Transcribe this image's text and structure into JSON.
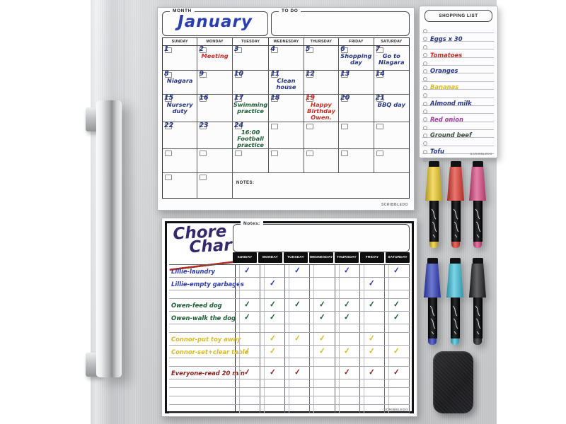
{
  "palette": {
    "navy": "#27357e",
    "blue": "#2c3ba8",
    "red": "#c03026",
    "darkred": "#8e1f1f",
    "green": "#1d5c35",
    "yellow": "#d7ba28",
    "purple": "#a238a0",
    "dark": "#3a4a3f",
    "ink": "#222222"
  },
  "calendar_board": {
    "month_label": "MONTH",
    "month_value": "January",
    "todo_label": "TO DO",
    "notes_label": "NOTES:",
    "brand_text": "SCRIBBLEDO",
    "day_headers": [
      "SUNDAY",
      "MONDAY",
      "TUESDAY",
      "WEDNESDAY",
      "THURSDAY",
      "FRIDAY",
      "SATURDAY"
    ],
    "weeks": [
      [
        {
          "date": "1"
        },
        {
          "date": "2",
          "note": "Meeting",
          "note_color": "red"
        },
        {
          "date": "3"
        },
        {
          "date": "4"
        },
        {
          "date": "5"
        },
        {
          "date": "6",
          "note": "Shopping day",
          "note_color": "navy"
        },
        {
          "date": "7",
          "note": "Go to Niagara",
          "note_color": "navy"
        }
      ],
      [
        {
          "date": "8",
          "note": "Niagara",
          "note_color": "navy"
        },
        {
          "date": "9"
        },
        {
          "date": "10"
        },
        {
          "date": "11",
          "note": "Clean house",
          "note_color": "navy"
        },
        {
          "date": "12"
        },
        {
          "date": "13"
        },
        {
          "date": "14"
        }
      ],
      [
        {
          "date": "15",
          "note": "Nursery duty",
          "note_color": "navy"
        },
        {
          "date": "16"
        },
        {
          "date": "17",
          "note": "Swimming practice",
          "note_color": "green"
        },
        {
          "date": "18"
        },
        {
          "date": "19",
          "date_color": "red",
          "note": "Happy Birthday Owen.",
          "note_color": "red"
        },
        {
          "date": "20"
        },
        {
          "date": "21",
          "note": "BBQ day",
          "note_color": "navy"
        }
      ],
      [
        {
          "date": "22"
        },
        {
          "date": "23"
        },
        {
          "date": "24",
          "note": "16:00 Football practice",
          "note_color": "green"
        },
        {},
        {},
        {},
        {}
      ],
      [
        {},
        {},
        {},
        {},
        {},
        {},
        {}
      ]
    ]
  },
  "shopping_board": {
    "title": "SHOPPING LIST",
    "brand_text": "SCRIBBLEDO",
    "total_lines": 17,
    "items": [
      {
        "text": "Eggs x 30",
        "color": "navy",
        "line": 1
      },
      {
        "text": "Tomatoes",
        "color": "red",
        "line": 3
      },
      {
        "text": "Oranges",
        "color": "navy",
        "line": 5
      },
      {
        "text": "Bananas",
        "color": "yellow",
        "line": 7
      },
      {
        "text": "Almond milk",
        "color": "navy",
        "line": 9
      },
      {
        "text": "Red onion",
        "color": "purple",
        "line": 11
      },
      {
        "text": "Ground beef",
        "color": "dark",
        "line": 13
      },
      {
        "text": "Tofu",
        "color": "navy",
        "line": 15
      }
    ]
  },
  "chore_board": {
    "title_line1": "Chore",
    "title_line2": "Chart",
    "notes_label": "Notes:",
    "brand_text": "SCRIBBLEDO",
    "day_headers": [
      "SUNDAY",
      "MONDAY",
      "TUESDAY",
      "WEDNESDAY",
      "THURSDAY",
      "FRIDAY",
      "SATURDAY"
    ],
    "rows": [
      {
        "label": "Lillie-laundry",
        "color": "blue",
        "checks": [
          1,
          0,
          1,
          0,
          1,
          0,
          1
        ]
      },
      {
        "label": "Lillie-empty garbages",
        "color": "blue",
        "checks": [
          0,
          1,
          0,
          0,
          0,
          1,
          0
        ]
      },
      {
        "label": "",
        "checks": [
          0,
          0,
          0,
          0,
          0,
          0,
          0
        ]
      },
      {
        "label": "Owen-feed dog",
        "color": "green",
        "checks": [
          1,
          1,
          1,
          1,
          1,
          1,
          1
        ]
      },
      {
        "label": "Owen-walk the dog",
        "color": "green",
        "checks": [
          1,
          1,
          0,
          1,
          1,
          0,
          1
        ]
      },
      {
        "label": "",
        "checks": [
          0,
          0,
          0,
          0,
          0,
          0,
          0
        ]
      },
      {
        "label": "Connor-put toy away",
        "color": "yellow",
        "checks": [
          0,
          1,
          1,
          1,
          0,
          1,
          0
        ]
      },
      {
        "label": "Connor-set+clear table",
        "color": "yellow",
        "checks": [
          1,
          1,
          0,
          1,
          1,
          1,
          1
        ]
      },
      {
        "label": "",
        "checks": [
          0,
          0,
          0,
          0,
          0,
          0,
          0
        ]
      },
      {
        "label": "Everyone-read 20 min",
        "color": "darkred",
        "checks": [
          1,
          1,
          1,
          0,
          1,
          1,
          1
        ]
      },
      {
        "label": "",
        "checks": [
          0,
          0,
          0,
          0,
          0,
          0,
          0
        ]
      },
      {
        "label": "",
        "checks": [
          0,
          0,
          0,
          0,
          0,
          0,
          0
        ]
      },
      {
        "label": "",
        "checks": [
          0,
          0,
          0,
          0,
          0,
          0,
          0
        ]
      },
      {
        "label": "",
        "checks": [
          0,
          0,
          0,
          0,
          0,
          0,
          0
        ]
      }
    ]
  },
  "markers": [
    {
      "name": "yellow",
      "hex": "#f0cd28"
    },
    {
      "name": "red",
      "hex": "#e23b30"
    },
    {
      "name": "pink",
      "hex": "#dd4a84"
    },
    {
      "name": "blue",
      "hex": "#2f3fbd"
    },
    {
      "name": "cyan",
      "hex": "#42c2dd"
    },
    {
      "name": "black",
      "hex": "#202023"
    }
  ]
}
